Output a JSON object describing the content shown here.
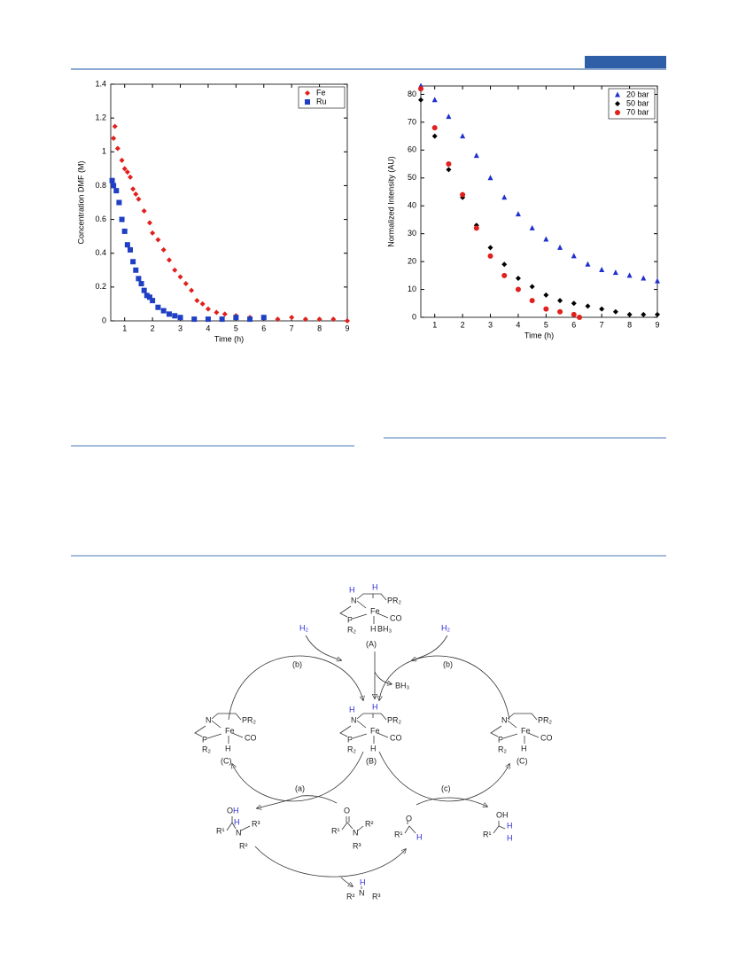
{
  "chart_data": [
    {
      "type": "scatter",
      "x_label": "Time (h)",
      "y_label": "Concentration DMF (M)",
      "xlim": [
        0.5,
        9
      ],
      "xticks": [
        1,
        2,
        3,
        4,
        5,
        6,
        7,
        8,
        9
      ],
      "ylim": [
        0,
        1.4
      ],
      "yticks": [
        0,
        0.2,
        0.4,
        0.6,
        0.8,
        1,
        1.2,
        1.4
      ],
      "legend": "upper right",
      "series": [
        {
          "name": "Fe",
          "color": "#e0201c",
          "marker": "diamond",
          "x": [
            0.6,
            0.65,
            0.75,
            0.9,
            1.0,
            1.1,
            1.2,
            1.3,
            1.4,
            1.5,
            1.7,
            1.9,
            2.0,
            2.2,
            2.4,
            2.6,
            2.8,
            3.0,
            3.2,
            3.4,
            3.6,
            3.8,
            4.0,
            4.3,
            4.6,
            5.0,
            5.5,
            6.0,
            6.5,
            7.0,
            7.5,
            8.0,
            8.5,
            9.0
          ],
          "values": [
            1.08,
            1.15,
            1.02,
            0.95,
            0.9,
            0.88,
            0.85,
            0.78,
            0.75,
            0.72,
            0.65,
            0.58,
            0.52,
            0.48,
            0.42,
            0.36,
            0.3,
            0.26,
            0.22,
            0.18,
            0.12,
            0.1,
            0.07,
            0.05,
            0.04,
            0.03,
            0.02,
            0.02,
            0.01,
            0.02,
            0.01,
            0.01,
            0.01,
            0.0
          ]
        },
        {
          "name": "Ru",
          "color": "#1f3fc4",
          "marker": "square",
          "x": [
            0.55,
            0.6,
            0.7,
            0.8,
            0.9,
            1.0,
            1.1,
            1.2,
            1.3,
            1.4,
            1.5,
            1.6,
            1.7,
            1.8,
            1.9,
            2.0,
            2.2,
            2.4,
            2.6,
            2.8,
            3.0,
            3.5,
            4.0,
            4.5,
            5.0,
            5.5,
            6.0
          ],
          "values": [
            0.83,
            0.8,
            0.77,
            0.7,
            0.6,
            0.53,
            0.45,
            0.42,
            0.35,
            0.3,
            0.25,
            0.22,
            0.18,
            0.15,
            0.14,
            0.12,
            0.08,
            0.06,
            0.04,
            0.03,
            0.02,
            0.01,
            0.01,
            0.01,
            0.02,
            0.01,
            0.02
          ]
        }
      ]
    },
    {
      "type": "scatter",
      "x_label": "Time (h)",
      "y_label": "Normalized Intensity (AU)",
      "xlim": [
        0.5,
        9
      ],
      "xticks": [
        1,
        2,
        3,
        4,
        5,
        6,
        7,
        8,
        9
      ],
      "ylim": [
        0,
        83
      ],
      "yticks": [
        0,
        10,
        20,
        30,
        40,
        50,
        60,
        70,
        80
      ],
      "legend": "upper right",
      "series": [
        {
          "name": "20 bar",
          "color": "#1f2fd0",
          "marker": "triangle",
          "x": [
            0.5,
            1,
            1.5,
            2,
            2.5,
            3,
            3.5,
            4,
            4.5,
            5,
            5.5,
            6,
            6.5,
            7,
            7.5,
            8,
            8.5,
            9
          ],
          "values": [
            83,
            78,
            72,
            65,
            58,
            50,
            43,
            37,
            32,
            28,
            25,
            22,
            19,
            17,
            16,
            15,
            14,
            13
          ]
        },
        {
          "name": "50 bar",
          "color": "#000000",
          "marker": "diamond",
          "x": [
            0.5,
            1,
            1.5,
            2,
            2.5,
            3,
            3.5,
            4,
            4.5,
            5,
            5.5,
            6,
            6.5,
            7,
            7.5,
            8,
            8.5,
            9
          ],
          "values": [
            78,
            65,
            53,
            43,
            33,
            25,
            19,
            14,
            11,
            8,
            6,
            5,
            4,
            3,
            2,
            1,
            1,
            1
          ]
        },
        {
          "name": "70 bar",
          "color": "#e0201c",
          "marker": "circle",
          "x": [
            0.5,
            1,
            1.5,
            2,
            2.5,
            3,
            3.5,
            4,
            4.5,
            5,
            5.5,
            6,
            6.2
          ],
          "values": [
            82,
            68,
            55,
            44,
            32,
            22,
            15,
            10,
            6,
            3,
            2,
            1,
            0
          ]
        }
      ]
    }
  ],
  "scheme": {
    "reagents": {
      "h2": "H₂",
      "bh3": "BH₃"
    },
    "atoms": {
      "N": "N",
      "Fe": "Fe",
      "PR2": "PR₂",
      "P": "P",
      "R2": "R₂",
      "CO": "CO",
      "H": "H",
      "O": "O",
      "OH": "OH",
      "R1": "R¹",
      "Rb": "R²",
      "R3": "R³"
    },
    "labels": {
      "A": "(A)",
      "B": "(B)",
      "C": "(C)"
    },
    "steps": {
      "a": "(a)",
      "b": "(b)",
      "c": "(c)"
    }
  }
}
